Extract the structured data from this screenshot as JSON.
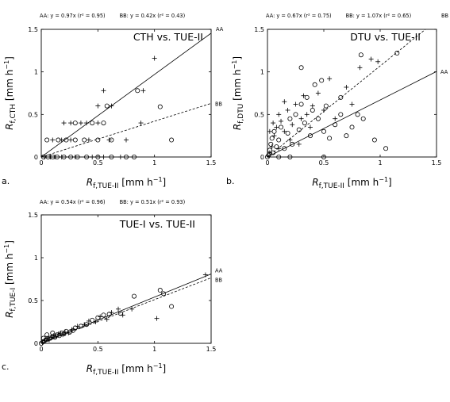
{
  "panels": [
    {
      "letter": "a.",
      "fit_text": {
        "aa": "AA: y = 0.97x (r² = 0.95)",
        "bb": "BB: y = 0.42x (r² = 0.43)",
        "extra": ""
      },
      "end_labels": {
        "aa": "AA",
        "bb": "BB"
      },
      "xlabel": {
        "main": "R",
        "sub": "f,TUE-II",
        "unit": " [mm h",
        "exp": "−1",
        "close": "]"
      },
      "ylabel": {
        "main": "R",
        "sub": "f,CTH",
        "unit": " [mm h",
        "exp": "−1",
        "close": "]"
      }
    },
    {
      "letter": "b.",
      "fit_text": {
        "aa": "AA: y = 0.67x (r² = 0.75)",
        "bb": "BB: y = 1.07x (r² = 0.65)",
        "extra": "BB"
      },
      "end_labels": {
        "aa": "AA",
        "bb": ""
      },
      "xlabel": {
        "main": "R",
        "sub": "f,TUE-II",
        "unit": " [mm h",
        "exp": "−1",
        "close": "]"
      },
      "ylabel": {
        "main": "R",
        "sub": "f,DTU",
        "unit": " [mm h",
        "exp": "−1",
        "close": "]"
      }
    },
    {
      "letter": "c.",
      "fit_text": {
        "aa": "AA: y = 0.54x (r² = 0.96)",
        "bb": "BB: y = 0.51x (r² = 0.93)",
        "extra": ""
      },
      "end_labels": {
        "aa": "AA",
        "bb": "BB"
      },
      "xlabel": {
        "main": "R",
        "sub": "f,TUE-II",
        "unit": " [mm h",
        "exp": "−1",
        "close": "]"
      },
      "ylabel": {
        "main": "R",
        "sub": "f,TUE-I",
        "unit": " [mm h",
        "exp": "−1",
        "close": "]"
      }
    }
  ],
  "chart_data": [
    {
      "type": "scatter",
      "title": "CTH vs. TUE-II",
      "xlabel": "Rf,TUE-II [mm h−1]",
      "ylabel": "Rf,CTH [mm h−1]",
      "xlim": [
        0,
        1.5
      ],
      "ylim": [
        0,
        1.5
      ],
      "xticks": [
        "0",
        "0.5",
        "1",
        "1.5"
      ],
      "yticks": [
        "0",
        "0.5",
        "1",
        "1.5"
      ],
      "grid": false,
      "fits": [
        {
          "name": "AA",
          "slope": 0.97,
          "style": "solid"
        },
        {
          "name": "BB",
          "slope": 0.42,
          "style": "dashed"
        }
      ],
      "series": [
        {
          "marker": "circle",
          "points": [
            [
              0.02,
              0
            ],
            [
              0.06,
              0
            ],
            [
              0.1,
              0
            ],
            [
              0.14,
              0
            ],
            [
              0.2,
              0
            ],
            [
              0.26,
              0
            ],
            [
              0.32,
              0
            ],
            [
              0.4,
              0
            ],
            [
              0.5,
              0
            ],
            [
              0.62,
              0
            ],
            [
              0.75,
              0
            ],
            [
              0.82,
              0
            ],
            [
              0.15,
              0.2
            ],
            [
              0.22,
              0.2
            ],
            [
              0.3,
              0.2
            ],
            [
              0.38,
              0.2
            ],
            [
              0.5,
              0.2
            ],
            [
              0.62,
              0.2
            ],
            [
              0.3,
              0.4
            ],
            [
              0.45,
              0.4
            ],
            [
              0.58,
              0.6
            ],
            [
              0.85,
              0.78
            ],
            [
              1.05,
              0.59
            ],
            [
              1.15,
              0.2
            ],
            [
              0.05,
              0.2
            ],
            [
              0.55,
              0.4
            ]
          ]
        },
        {
          "marker": "plus",
          "points": [
            [
              0.03,
              0
            ],
            [
              0.08,
              0
            ],
            [
              0.12,
              0
            ],
            [
              0.18,
              0
            ],
            [
              0.3,
              0
            ],
            [
              0.45,
              0
            ],
            [
              0.55,
              0
            ],
            [
              0.7,
              0
            ],
            [
              0.1,
              0.2
            ],
            [
              0.18,
              0.2
            ],
            [
              0.26,
              0.2
            ],
            [
              0.42,
              0.2
            ],
            [
              0.6,
              0.2
            ],
            [
              0.75,
              0.2
            ],
            [
              0.2,
              0.4
            ],
            [
              0.26,
              0.4
            ],
            [
              0.35,
              0.4
            ],
            [
              0.4,
              0.4
            ],
            [
              0.5,
              0.4
            ],
            [
              0.5,
              0.6
            ],
            [
              0.62,
              0.6
            ],
            [
              0.55,
              0.78
            ],
            [
              0.9,
              0.78
            ],
            [
              1.0,
              1.16
            ],
            [
              0.88,
              0.4
            ]
          ]
        }
      ]
    },
    {
      "type": "scatter",
      "title": "DTU vs. TUE-II",
      "xlabel": "Rf,TUE-II [mm h−1]",
      "ylabel": "Rf,DTU [mm h−1]",
      "xlim": [
        0,
        1.5
      ],
      "ylim": [
        0,
        1.5
      ],
      "xticks": [
        "0",
        "0.5",
        "1",
        "1.5"
      ],
      "yticks": [
        "0",
        "0.5",
        "1",
        "1.5"
      ],
      "grid": false,
      "fits": [
        {
          "name": "AA",
          "slope": 0.67,
          "style": "solid"
        },
        {
          "name": "BB",
          "slope": 1.07,
          "style": "dashed"
        }
      ],
      "series": [
        {
          "marker": "circle",
          "points": [
            [
              0.01,
              0.02
            ],
            [
              0.02,
              0.08
            ],
            [
              0.03,
              0.15
            ],
            [
              0.04,
              0.22
            ],
            [
              0.05,
              0.05
            ],
            [
              0.06,
              0.3
            ],
            [
              0.08,
              0.12
            ],
            [
              0.1,
              0.2
            ],
            [
              0.12,
              0.35
            ],
            [
              0.15,
              0.1
            ],
            [
              0.18,
              0.28
            ],
            [
              0.2,
              0.45
            ],
            [
              0.22,
              0.15
            ],
            [
              0.25,
              0.5
            ],
            [
              0.28,
              0.32
            ],
            [
              0.3,
              0.62
            ],
            [
              0.33,
              0.4
            ],
            [
              0.35,
              0.7
            ],
            [
              0.38,
              0.25
            ],
            [
              0.4,
              0.55
            ],
            [
              0.42,
              0.85
            ],
            [
              0.45,
              0.45
            ],
            [
              0.48,
              0.9
            ],
            [
              0.5,
              0.3
            ],
            [
              0.52,
              0.6
            ],
            [
              0.55,
              0.22
            ],
            [
              0.6,
              0.38
            ],
            [
              0.65,
              0.5
            ],
            [
              0.7,
              0.25
            ],
            [
              0.75,
              0.35
            ],
            [
              0.8,
              0.5
            ],
            [
              0.83,
              1.2
            ],
            [
              0.85,
              0.45
            ],
            [
              0.3,
              1.05
            ],
            [
              1.15,
              1.22
            ],
            [
              0.95,
              0.2
            ],
            [
              1.05,
              0.1
            ],
            [
              0.5,
              0.0
            ],
            [
              0.2,
              0.0
            ],
            [
              0.1,
              0.0
            ],
            [
              0.0,
              0.0
            ],
            [
              0.65,
              0.7
            ]
          ]
        },
        {
          "marker": "plus",
          "points": [
            [
              0.02,
              0.05
            ],
            [
              0.04,
              0.12
            ],
            [
              0.06,
              0.25
            ],
            [
              0.08,
              0.35
            ],
            [
              0.1,
              0.1
            ],
            [
              0.12,
              0.42
            ],
            [
              0.15,
              0.3
            ],
            [
              0.18,
              0.55
            ],
            [
              0.2,
              0.2
            ],
            [
              0.22,
              0.38
            ],
            [
              0.25,
              0.62
            ],
            [
              0.28,
              0.15
            ],
            [
              0.3,
              0.45
            ],
            [
              0.32,
              0.72
            ],
            [
              0.35,
              0.5
            ],
            [
              0.38,
              0.35
            ],
            [
              0.4,
              0.6
            ],
            [
              0.45,
              0.75
            ],
            [
              0.5,
              0.55
            ],
            [
              0.55,
              0.92
            ],
            [
              0.6,
              0.45
            ],
            [
              0.7,
              0.82
            ],
            [
              0.75,
              0.62
            ],
            [
              0.82,
              1.05
            ],
            [
              0.92,
              1.15
            ],
            [
              0.98,
              1.12
            ],
            [
              0.1,
              0.5
            ],
            [
              0.15,
              0.65
            ],
            [
              0.05,
              0.4
            ],
            [
              0.02,
              0.3
            ]
          ]
        }
      ]
    },
    {
      "type": "scatter",
      "title": "TUE-I vs. TUE-II",
      "xlabel": "Rf,TUE-II [mm h−1]",
      "ylabel": "Rf,TUE-I [mm h−1]",
      "xlim": [
        0,
        1.5
      ],
      "ylim": [
        0,
        1.5
      ],
      "xticks": [
        "0",
        "0.5",
        "1",
        "1.5"
      ],
      "yticks": [
        "0",
        "0.5",
        "1",
        "1.5"
      ],
      "grid": false,
      "fits": [
        {
          "name": "AA",
          "slope": 0.54,
          "style": "solid"
        },
        {
          "name": "BB",
          "slope": 0.51,
          "style": "dashed"
        }
      ],
      "series": [
        {
          "marker": "circle",
          "points": [
            [
              0.0,
              0.0
            ],
            [
              0.02,
              0.02
            ],
            [
              0.04,
              0.04
            ],
            [
              0.06,
              0.05
            ],
            [
              0.08,
              0.06
            ],
            [
              0.1,
              0.08
            ],
            [
              0.12,
              0.07
            ],
            [
              0.14,
              0.1
            ],
            [
              0.16,
              0.09
            ],
            [
              0.18,
              0.12
            ],
            [
              0.2,
              0.11
            ],
            [
              0.22,
              0.14
            ],
            [
              0.25,
              0.13
            ],
            [
              0.28,
              0.15
            ],
            [
              0.3,
              0.18
            ],
            [
              0.35,
              0.2
            ],
            [
              0.4,
              0.22
            ],
            [
              0.45,
              0.27
            ],
            [
              0.5,
              0.3
            ],
            [
              0.55,
              0.33
            ],
            [
              0.6,
              0.34
            ],
            [
              0.7,
              0.35
            ],
            [
              0.82,
              0.55
            ],
            [
              1.05,
              0.62
            ],
            [
              1.08,
              0.58
            ],
            [
              1.15,
              0.43
            ],
            [
              0.05,
              0.1
            ],
            [
              0.1,
              0.12
            ],
            [
              0.02,
              0.06
            ]
          ]
        },
        {
          "marker": "plus",
          "points": [
            [
              0.01,
              0.01
            ],
            [
              0.03,
              0.03
            ],
            [
              0.05,
              0.06
            ],
            [
              0.07,
              0.04
            ],
            [
              0.09,
              0.07
            ],
            [
              0.11,
              0.09
            ],
            [
              0.13,
              0.08
            ],
            [
              0.15,
              0.11
            ],
            [
              0.17,
              0.12
            ],
            [
              0.19,
              0.1
            ],
            [
              0.21,
              0.13
            ],
            [
              0.24,
              0.12
            ],
            [
              0.27,
              0.16
            ],
            [
              0.32,
              0.2
            ],
            [
              0.38,
              0.22
            ],
            [
              0.42,
              0.26
            ],
            [
              0.48,
              0.25
            ],
            [
              0.52,
              0.31
            ],
            [
              0.58,
              0.28
            ],
            [
              0.62,
              0.36
            ],
            [
              0.68,
              0.4
            ],
            [
              0.72,
              0.33
            ],
            [
              0.8,
              0.4
            ],
            [
              1.02,
              0.29
            ],
            [
              1.45,
              0.8
            ]
          ]
        }
      ]
    }
  ]
}
